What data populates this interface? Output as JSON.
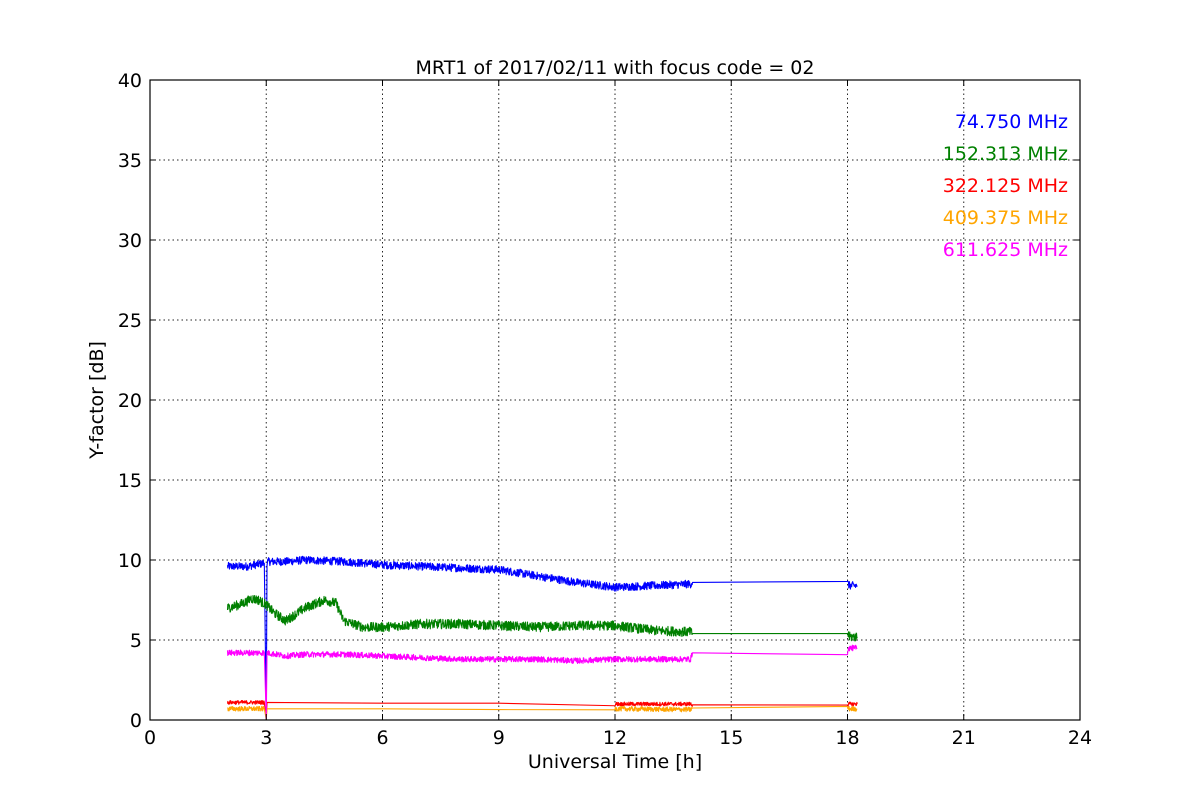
{
  "chart_data": {
    "type": "line",
    "title": "MRT1 of 2017/02/11 with focus code = 02",
    "xlabel": "Universal Time [h]",
    "ylabel": "Y-factor [dB]",
    "xlim": [
      0,
      24
    ],
    "ylim": [
      0,
      40
    ],
    "xticks": [
      0,
      3,
      6,
      9,
      12,
      15,
      18,
      21,
      24
    ],
    "xtick_labels": [
      "0",
      "3",
      "6",
      "9",
      "12",
      "15",
      "18",
      "21",
      "24"
    ],
    "yticks": [
      0,
      5,
      10,
      15,
      20,
      25,
      30,
      35,
      40
    ],
    "ytick_labels": [
      "0",
      "5",
      "10",
      "15",
      "20",
      "25",
      "30",
      "35",
      "40"
    ],
    "grid": true,
    "legend_placement": "top-right",
    "series": [
      {
        "name": "74.750 MHz",
        "color": "#0000ff",
        "noise": 0.25,
        "points": [
          [
            2.0,
            9.6
          ],
          [
            2.5,
            9.6
          ],
          [
            2.95,
            9.8
          ],
          [
            3.0,
            0.1
          ],
          [
            3.02,
            9.9
          ],
          [
            3.5,
            9.9
          ],
          [
            4.0,
            10.0
          ],
          [
            5.0,
            9.9
          ],
          [
            6.0,
            9.7
          ],
          [
            7.0,
            9.6
          ],
          [
            8.0,
            9.5
          ],
          [
            9.0,
            9.4
          ],
          [
            10.0,
            9.0
          ],
          [
            11.0,
            8.6
          ],
          [
            12.0,
            8.3
          ],
          [
            13.0,
            8.4
          ],
          [
            13.95,
            8.5
          ],
          [
            14.0,
            8.6
          ],
          [
            18.0,
            8.55
          ],
          [
            18.05,
            8.4
          ],
          [
            18.25,
            8.4
          ]
        ]
      },
      {
        "name": "152.313 MHz",
        "color": "#008000",
        "noise": 0.3,
        "points": [
          [
            2.0,
            7.0
          ],
          [
            2.3,
            7.2
          ],
          [
            2.5,
            7.4
          ],
          [
            2.6,
            7.6
          ],
          [
            2.8,
            7.5
          ],
          [
            3.0,
            7.2
          ],
          [
            3.2,
            6.7
          ],
          [
            3.5,
            6.2
          ],
          [
            4.0,
            7.0
          ],
          [
            4.5,
            7.5
          ],
          [
            4.8,
            7.3
          ],
          [
            5.0,
            6.2
          ],
          [
            5.5,
            5.8
          ],
          [
            6.0,
            5.8
          ],
          [
            7.0,
            6.0
          ],
          [
            8.0,
            6.0
          ],
          [
            9.0,
            5.9
          ],
          [
            10.0,
            5.8
          ],
          [
            11.0,
            5.9
          ],
          [
            12.0,
            5.9
          ],
          [
            13.0,
            5.6
          ],
          [
            13.95,
            5.5
          ],
          [
            14.0,
            5.4
          ],
          [
            18.0,
            5.4
          ],
          [
            18.05,
            5.2
          ],
          [
            18.25,
            5.2
          ]
        ]
      },
      {
        "name": "322.125 MHz",
        "color": "#ff0000",
        "noise": 0.12,
        "points": [
          [
            2.0,
            1.1
          ],
          [
            2.95,
            1.1
          ],
          [
            3.0,
            0.1
          ],
          [
            3.02,
            1.1
          ],
          [
            6.0,
            1.05
          ],
          [
            9.0,
            1.05
          ],
          [
            12.0,
            1.0
          ],
          [
            13.95,
            1.0
          ],
          [
            14.0,
            0.95
          ],
          [
            18.0,
            0.95
          ],
          [
            18.05,
            1.0
          ],
          [
            18.25,
            1.0
          ]
        ]
      },
      {
        "name": "409.375 MHz",
        "color": "#ffa500",
        "noise": 0.15,
        "points": [
          [
            2.0,
            0.7
          ],
          [
            2.95,
            0.7
          ],
          [
            3.0,
            0.05
          ],
          [
            3.02,
            0.7
          ],
          [
            6.0,
            0.7
          ],
          [
            9.0,
            0.65
          ],
          [
            12.0,
            0.7
          ],
          [
            13.95,
            0.65
          ],
          [
            14.0,
            0.75
          ],
          [
            18.0,
            0.75
          ],
          [
            18.05,
            0.7
          ],
          [
            18.25,
            0.7
          ]
        ]
      },
      {
        "name": "611.625 MHz",
        "color": "#ff00ff",
        "noise": 0.18,
        "points": [
          [
            2.0,
            4.2
          ],
          [
            2.95,
            4.2
          ],
          [
            3.0,
            0.1
          ],
          [
            3.02,
            4.2
          ],
          [
            3.5,
            4.0
          ],
          [
            4.0,
            4.1
          ],
          [
            5.0,
            4.1
          ],
          [
            6.0,
            4.0
          ],
          [
            7.0,
            3.9
          ],
          [
            8.0,
            3.8
          ],
          [
            9.0,
            3.8
          ],
          [
            10.0,
            3.8
          ],
          [
            11.0,
            3.7
          ],
          [
            12.0,
            3.8
          ],
          [
            13.0,
            3.8
          ],
          [
            13.95,
            3.8
          ],
          [
            14.0,
            4.2
          ],
          [
            18.0,
            4.25
          ],
          [
            18.05,
            4.5
          ],
          [
            18.25,
            4.5
          ]
        ]
      }
    ]
  }
}
